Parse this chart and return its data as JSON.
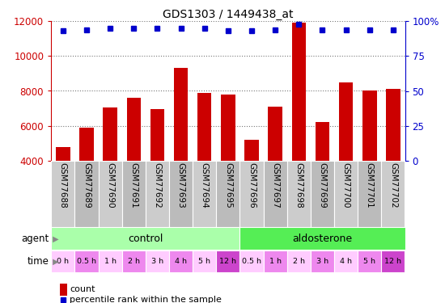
{
  "title": "GDS1303 / 1449438_at",
  "samples": [
    "GSM77688",
    "GSM77689",
    "GSM77690",
    "GSM77691",
    "GSM77692",
    "GSM77693",
    "GSM77694",
    "GSM77695",
    "GSM77696",
    "GSM77697",
    "GSM77698",
    "GSM77699",
    "GSM77700",
    "GSM77701",
    "GSM77702"
  ],
  "counts": [
    4800,
    5900,
    7050,
    7600,
    6950,
    9300,
    7900,
    7800,
    5200,
    7100,
    11900,
    6200,
    8500,
    8000,
    8100
  ],
  "percentiles": [
    93,
    94,
    95,
    95,
    95,
    95,
    95,
    93,
    93,
    94,
    98,
    94,
    94,
    94,
    94
  ],
  "ylim_left": [
    4000,
    12000
  ],
  "ylim_right": [
    0,
    100
  ],
  "yticks_left": [
    4000,
    6000,
    8000,
    10000,
    12000
  ],
  "yticks_right": [
    0,
    25,
    50,
    75,
    100
  ],
  "bar_color": "#cc0000",
  "dot_color": "#0000cc",
  "agent_control_color": "#aaffaa",
  "agent_aldo_color": "#55ee55",
  "time_colors": [
    "#ffaaff",
    "#ee88ee",
    "#ffaaff",
    "#dd66dd",
    "#ffaaff",
    "#ee88ee",
    "#ffaaff",
    "#cc44cc",
    "#ffaaff",
    "#ee88ee",
    "#dd66dd",
    "#ffaaff",
    "#ee88ee",
    "#ffaaff",
    "#cc44cc"
  ],
  "sample_col_colors": [
    "#cccccc",
    "#bbbbbb",
    "#cccccc",
    "#bbbbbb",
    "#cccccc",
    "#bbbbbb",
    "#cccccc",
    "#bbbbbb",
    "#cccccc",
    "#bbbbbb",
    "#cccccc",
    "#bbbbbb",
    "#cccccc",
    "#bbbbbb",
    "#cccccc"
  ],
  "grid_color": "#777777",
  "background_color": "#ffffff",
  "bar_width": 0.6,
  "control_count": 8,
  "aldo_count": 7,
  "time_labels": [
    "0 h",
    "0.5 h",
    "1 h",
    "2 h",
    "3 h",
    "4 h",
    "5 h",
    "12 h",
    "0.5 h",
    "1 h",
    "2 h",
    "3 h",
    "4 h",
    "5 h",
    "12 h"
  ]
}
